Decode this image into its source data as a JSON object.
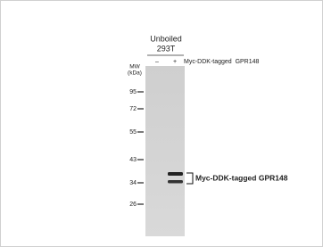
{
  "header": {
    "condition": "Unboiled",
    "cell_line": "293T"
  },
  "lanes": [
    "–",
    "+"
  ],
  "lane_label": "Myc-DDK-tagged  GPR148",
  "mw": {
    "title": "MW",
    "unit": "(kDa)",
    "markers": [
      "95",
      "72",
      "55",
      "43",
      "34",
      "26"
    ]
  },
  "band_label": "Myc-DDK-tagged GPR148"
}
